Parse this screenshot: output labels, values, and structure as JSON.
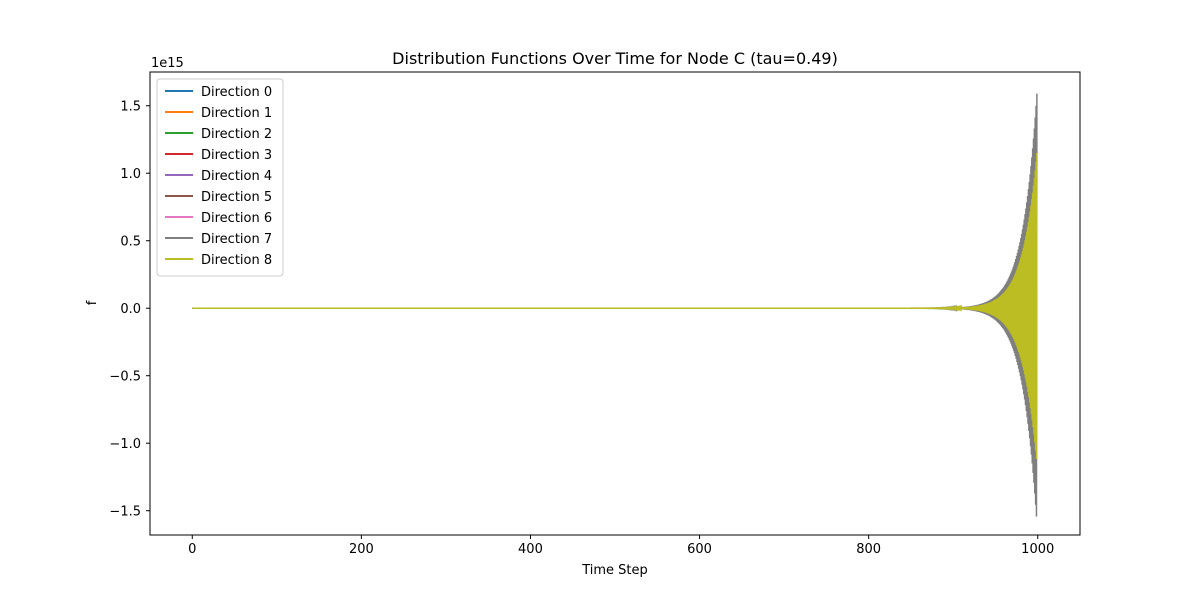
{
  "chart_data": {
    "type": "line",
    "title": "Distribution Functions Over Time for Node C (tau=0.49)",
    "xlabel": "Time Step",
    "ylabel": "f",
    "y_offset_label": "1e15",
    "xlim": [
      -50,
      1050
    ],
    "ylim": [
      -1.68,
      1.75
    ],
    "y_scale_exponent": 15,
    "xticks": [
      0,
      200,
      400,
      600,
      800,
      1000
    ],
    "xtick_labels": [
      "0",
      "200",
      "400",
      "600",
      "800",
      "1000"
    ],
    "yticks": [
      -1.5,
      -1.0,
      -0.5,
      0.0,
      0.5,
      1.0,
      1.5
    ],
    "ytick_labels": [
      "−1.5",
      "−1.0",
      "−0.5",
      "0.0",
      "0.5",
      "1.0",
      "1.5"
    ],
    "grid": false,
    "legend_position": "upper-left",
    "x_range": [
      0,
      999
    ],
    "series": [
      {
        "name": "Direction 0",
        "color": "#1f77b4",
        "envelope_peak": 0.0
      },
      {
        "name": "Direction 1",
        "color": "#ff7f0e",
        "envelope_peak": 0.0
      },
      {
        "name": "Direction 2",
        "color": "#2ca02c",
        "envelope_peak": 0.0
      },
      {
        "name": "Direction 3",
        "color": "#d62728",
        "envelope_peak": 0.0
      },
      {
        "name": "Direction 4",
        "color": "#9467bd",
        "envelope_peak": 0.0
      },
      {
        "name": "Direction 5",
        "color": "#8c564b",
        "envelope_peak": 0.0
      },
      {
        "name": "Direction 6",
        "color": "#e377c2",
        "envelope_peak": 0.0
      },
      {
        "name": "Direction 7",
        "color": "#7f7f7f",
        "envelope_peak": 1.59
      },
      {
        "name": "Direction 8",
        "color": "#bcbd22",
        "envelope_peak": 1.15
      }
    ]
  }
}
